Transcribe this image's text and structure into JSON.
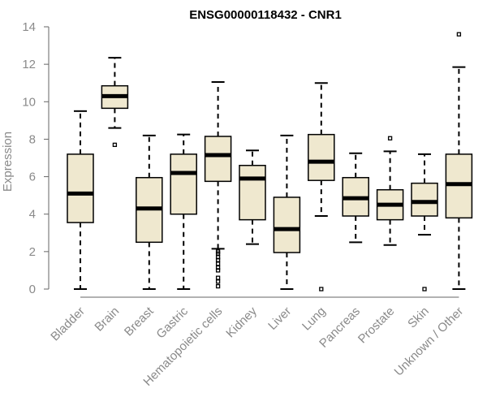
{
  "chart_data": {
    "type": "box",
    "title": "ENSG00000118432 - CNR1",
    "xlabel": "",
    "ylabel": "Expression",
    "ylim": [
      0,
      14
    ],
    "yticks": [
      0,
      2,
      4,
      6,
      8,
      10,
      12,
      14
    ],
    "box_color": "#efe8cf",
    "categories": [
      "Bladder",
      "Brain",
      "Breast",
      "Gastric",
      "Hematopoietic cells",
      "Kidney",
      "Liver",
      "Lung",
      "Pancreas",
      "Prostate",
      "Skin",
      "Unknown / Other"
    ],
    "boxes": [
      {
        "category": "Bladder",
        "whisker_low": 0.0,
        "q1": 3.55,
        "median": 5.1,
        "q3": 7.2,
        "whisker_high": 9.5,
        "outliers": []
      },
      {
        "category": "Brain",
        "whisker_low": 8.6,
        "q1": 9.65,
        "median": 10.3,
        "q3": 10.85,
        "whisker_high": 12.35,
        "outliers": [
          7.7
        ]
      },
      {
        "category": "Breast",
        "whisker_low": 0.0,
        "q1": 2.5,
        "median": 4.3,
        "q3": 5.95,
        "whisker_high": 8.2,
        "outliers": []
      },
      {
        "category": "Gastric",
        "whisker_low": 0.0,
        "q1": 4.0,
        "median": 6.2,
        "q3": 7.2,
        "whisker_high": 8.25,
        "outliers": []
      },
      {
        "category": "Hematopoietic cells",
        "whisker_low": 2.15,
        "q1": 5.75,
        "median": 7.15,
        "q3": 8.15,
        "whisker_high": 11.05,
        "outliers": [
          2.0,
          1.9,
          1.7,
          1.55,
          1.35,
          1.15,
          1.0,
          0.6,
          0.4,
          0.15
        ]
      },
      {
        "category": "Kidney",
        "whisker_low": 2.4,
        "q1": 3.7,
        "median": 5.9,
        "q3": 6.6,
        "whisker_high": 7.4,
        "outliers": []
      },
      {
        "category": "Liver",
        "whisker_low": 0.0,
        "q1": 1.95,
        "median": 3.2,
        "q3": 4.9,
        "whisker_high": 8.2,
        "outliers": []
      },
      {
        "category": "Lung",
        "whisker_low": 3.9,
        "q1": 5.8,
        "median": 6.8,
        "q3": 8.25,
        "whisker_high": 11.0,
        "outliers": [
          0.0
        ]
      },
      {
        "category": "Pancreas",
        "whisker_low": 2.5,
        "q1": 3.9,
        "median": 4.85,
        "q3": 5.95,
        "whisker_high": 7.25,
        "outliers": []
      },
      {
        "category": "Prostate",
        "whisker_low": 2.35,
        "q1": 3.7,
        "median": 4.5,
        "q3": 5.3,
        "whisker_high": 7.35,
        "outliers": [
          8.05
        ]
      },
      {
        "category": "Skin",
        "whisker_low": 2.9,
        "q1": 3.9,
        "median": 4.65,
        "q3": 5.65,
        "whisker_high": 7.2,
        "outliers": [
          0.0
        ]
      },
      {
        "category": "Unknown / Other",
        "whisker_low": 0.0,
        "q1": 3.8,
        "median": 5.6,
        "q3": 7.2,
        "whisker_high": 11.85,
        "outliers": [
          13.6
        ]
      }
    ]
  }
}
